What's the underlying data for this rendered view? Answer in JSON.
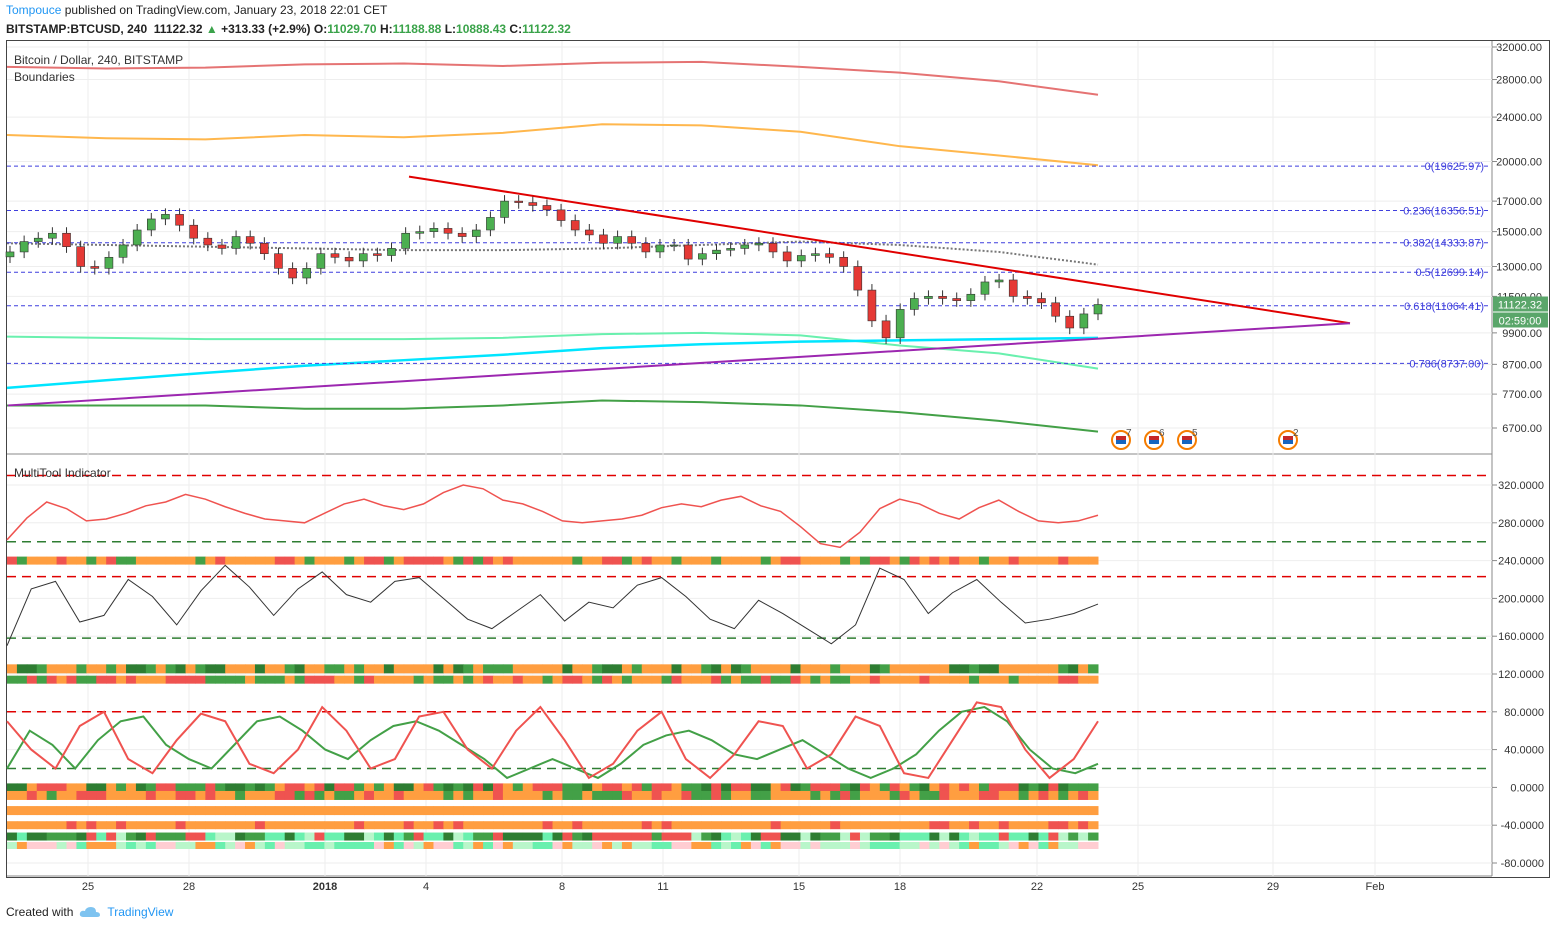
{
  "header": {
    "author": "Tompouce",
    "published_text": "published on TradingView.com, January 23, 2018 22:01 CET",
    "symbol": "BITSTAMP:BTCUSD, 240",
    "last": "11122.32",
    "up_arrow": "▲",
    "change": "+313.33 (+2.9%)",
    "o_label": "O:",
    "o_val": "11029.70",
    "h_label": "H:",
    "h_val": "11188.88",
    "l_label": "L:",
    "l_val": "10888.43",
    "c_label": "C:",
    "c_val": "11122.32"
  },
  "panes": {
    "main_title": "Bitcoin / Dollar, 240, BITSTAMP",
    "main_subtitle": "Boundaries",
    "indicator_title": "MultiTool Indicator"
  },
  "footer": {
    "created_with": "Created with",
    "brand": "TradingView"
  },
  "colors": {
    "up": "#4caf50",
    "down": "#e53935",
    "fib": "#3f3fdd",
    "trend_red": "#e00000",
    "trend_purple": "#9c27b0",
    "cyan": "#00e5ff"
  },
  "chart_data": [
    {
      "type": "candlestick",
      "title": "Bitcoin / Dollar, 240, BITSTAMP",
      "y_axis_scale": "log",
      "y_ticks": [
        "32000.00",
        "28000.00",
        "24000.00",
        "20000.00",
        "17000.00",
        "15000.00",
        "13000.00",
        "11500.00",
        "9900.00",
        "8700.00",
        "7700.00",
        "6700.00"
      ],
      "x_ticks": [
        "25",
        "28",
        "2018",
        "4",
        "8",
        "11",
        "15",
        "18",
        "22",
        "25",
        "29",
        "Feb"
      ],
      "last_price_label": "11122.32",
      "countdown_label": "02:59:00",
      "fib_levels": [
        {
          "label": "0(19625.97)",
          "value": 19625.97
        },
        {
          "label": "0.236(16356.51)",
          "value": 16356.51
        },
        {
          "label": "0.382(14333.87)",
          "value": 14333.87
        },
        {
          "label": "0.5(12699.14)",
          "value": 12699.14
        },
        {
          "label": "0.618(11064.41)",
          "value": 11064.41
        },
        {
          "label": "0.786(8737.00)",
          "value": 8737.0
        }
      ],
      "close_path": [
        13800,
        14400,
        14600,
        14900,
        14100,
        13000,
        12900,
        13500,
        14200,
        15100,
        15800,
        16100,
        15400,
        14600,
        14200,
        14000,
        14700,
        14300,
        13700,
        12900,
        12400,
        12900,
        13700,
        13500,
        13300,
        13700,
        13600,
        14000,
        14900,
        15000,
        15200,
        14900,
        14700,
        15100,
        15900,
        17000,
        16900,
        16700,
        16400,
        15700,
        15100,
        14800,
        14300,
        14700,
        14300,
        13800,
        14200,
        14200,
        13400,
        13700,
        13900,
        14000,
        14200,
        14300,
        13800,
        13300,
        13600,
        13700,
        13500,
        13000,
        11800,
        10400,
        9700,
        10900,
        11400,
        11500,
        11400,
        11300,
        11600,
        12200,
        12300,
        11500,
        11400,
        11200,
        10600,
        10100,
        10700,
        11122
      ],
      "events": [
        {
          "label": "7"
        },
        {
          "label": "6"
        },
        {
          "label": "5"
        },
        {
          "label": "2"
        }
      ]
    },
    {
      "type": "line",
      "title": "MultiTool Indicator",
      "y_ticks": [
        "320.0000",
        "280.0000",
        "240.0000",
        "200.0000",
        "160.0000",
        "120.0000",
        "80.0000",
        "40.0000",
        "0.0000",
        "-40.0000",
        "-80.0000"
      ],
      "dashed_levels": [
        330,
        260,
        223,
        158,
        80,
        20
      ],
      "series": [
        {
          "values": [
            262,
            285,
            302,
            295,
            282,
            284,
            290,
            298,
            302,
            310,
            305,
            297,
            290,
            284,
            282,
            280,
            290,
            300,
            305,
            298,
            294,
            300,
            312,
            320,
            316,
            304,
            300,
            292,
            282,
            280,
            282,
            284,
            288,
            296,
            300,
            297,
            304,
            308,
            298,
            292,
            276,
            258,
            254,
            270,
            295,
            305,
            300,
            290,
            284,
            296,
            304,
            292,
            282,
            280,
            282,
            288
          ]
        },
        {
          "values": [
            150,
            210,
            218,
            175,
            182,
            220,
            202,
            172,
            208,
            235,
            212,
            182,
            210,
            228,
            204,
            196,
            218,
            222,
            200,
            178,
            168,
            186,
            204,
            176,
            196,
            190,
            214,
            222,
            202,
            178,
            168,
            198,
            184,
            168,
            152,
            172,
            232,
            220,
            184,
            206,
            220,
            196,
            174,
            178,
            184,
            194
          ]
        },
        {
          "values": [
            20,
            60,
            45,
            20,
            50,
            70,
            75,
            45,
            30,
            20,
            45,
            70,
            75,
            60,
            40,
            30,
            50,
            65,
            70,
            60,
            45,
            30,
            10,
            20,
            30,
            20,
            10,
            25,
            45,
            55,
            60,
            50,
            35,
            30,
            40,
            50,
            35,
            20,
            10,
            20,
            35,
            60,
            80,
            85,
            70,
            40,
            20,
            15,
            25
          ]
        },
        {
          "values": [
            70,
            40,
            20,
            65,
            80,
            30,
            15,
            50,
            78,
            70,
            25,
            15,
            40,
            85,
            60,
            20,
            30,
            75,
            80,
            40,
            20,
            60,
            85,
            50,
            10,
            25,
            60,
            80,
            30,
            10,
            35,
            70,
            65,
            20,
            35,
            75,
            65,
            15,
            10,
            50,
            90,
            85,
            40,
            10,
            30,
            70
          ]
        }
      ]
    }
  ]
}
